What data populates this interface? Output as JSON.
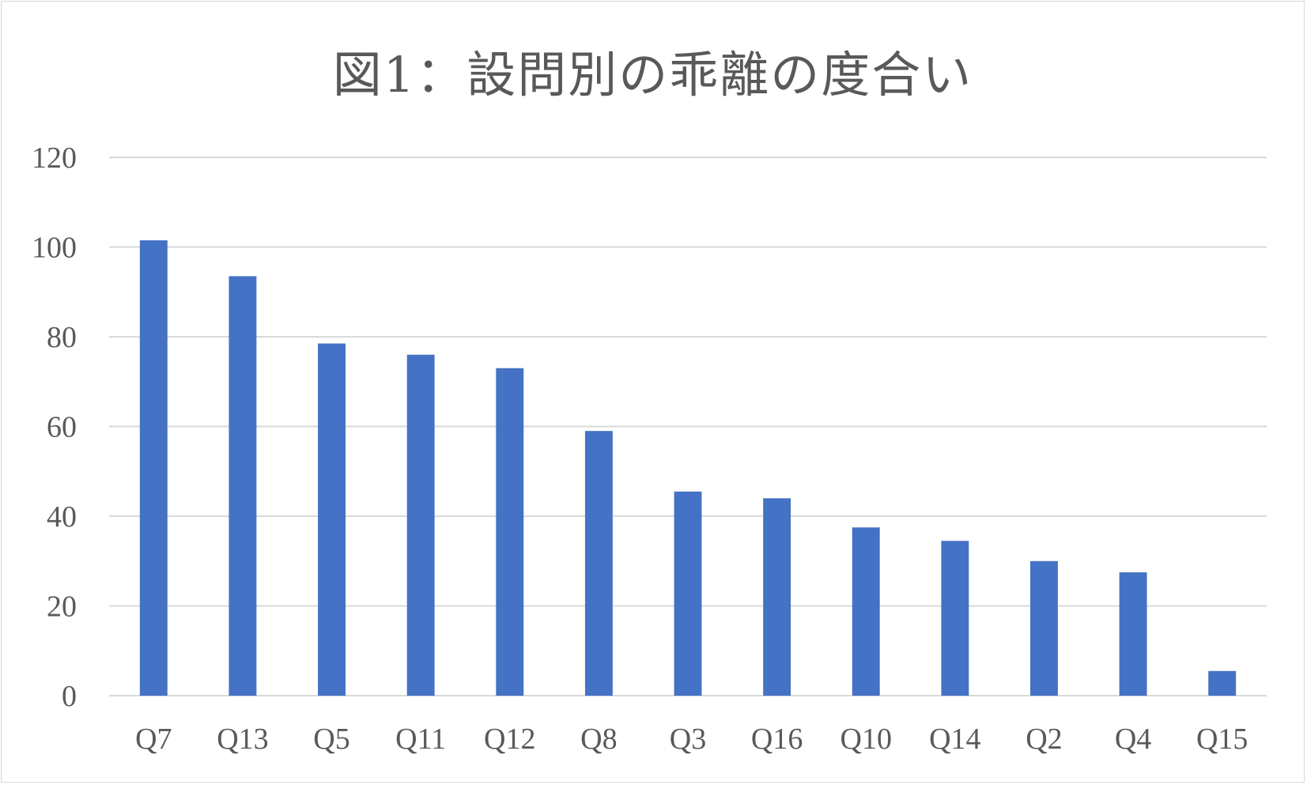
{
  "chart_data": {
    "type": "bar",
    "title": "図1：設問別の乖離の度合い",
    "categories": [
      "Q7",
      "Q13",
      "Q5",
      "Q11",
      "Q12",
      "Q8",
      "Q3",
      "Q16",
      "Q10",
      "Q14",
      "Q2",
      "Q4",
      "Q15"
    ],
    "values": [
      101.5,
      93.5,
      78.5,
      76,
      73,
      59,
      45.5,
      44,
      37.5,
      34.5,
      30,
      27.5,
      5.5
    ],
    "ylim": [
      0,
      120
    ],
    "yticks": [
      0,
      20,
      40,
      60,
      80,
      100,
      120
    ],
    "grid": true,
    "legend": "none",
    "bar_color": "#4472c4",
    "grid_color": "#d9d9d9",
    "text_color": "#595959"
  }
}
